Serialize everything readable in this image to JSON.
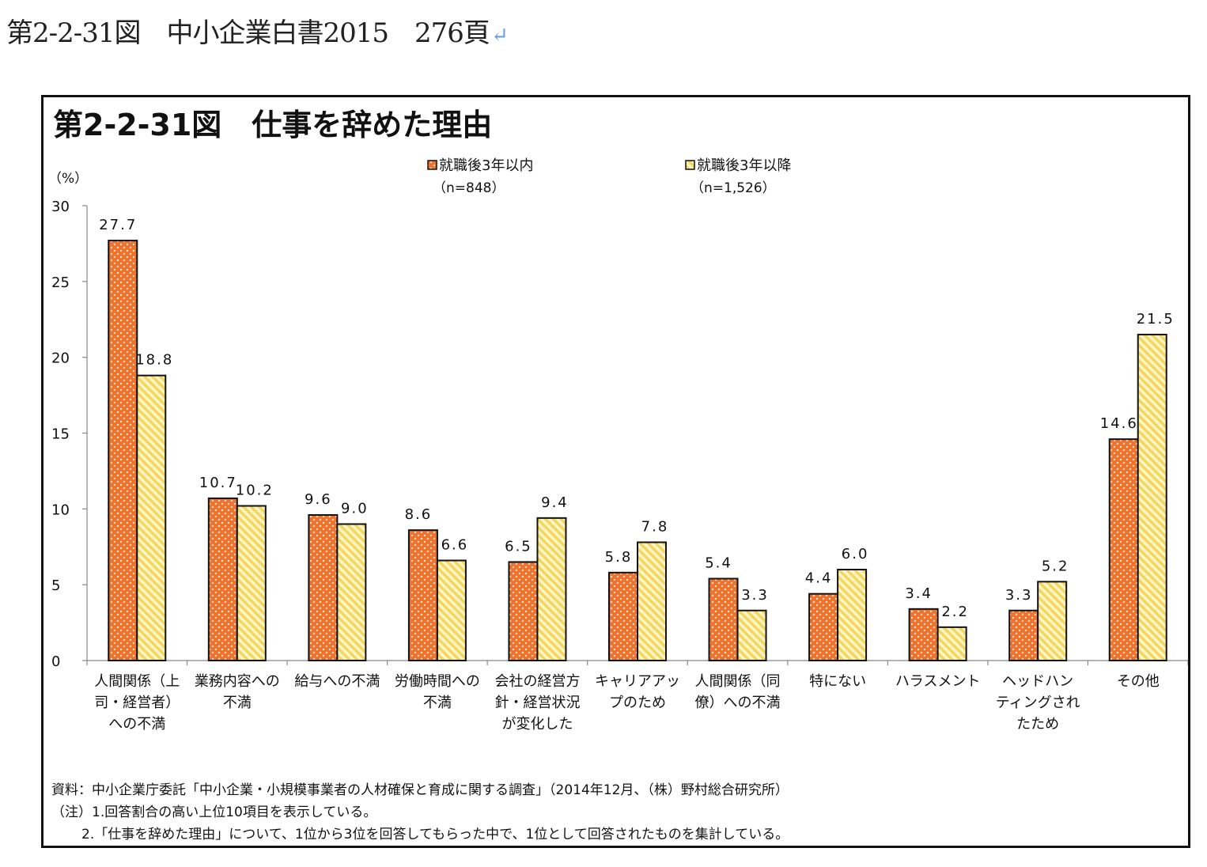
{
  "page": {
    "title": "第2-2-31図　中小企業白書2015　276頁",
    "return_mark": "↵"
  },
  "chart_data": {
    "type": "bar",
    "title": "第2-2-31図　仕事を辞めた理由",
    "ylabel": "（%）",
    "xlabel": "",
    "ylim": [
      0,
      30
    ],
    "yticks": [
      0,
      5,
      10,
      15,
      20,
      25,
      30
    ],
    "grid": false,
    "legend_position": "top-center",
    "categories": [
      [
        "人間関係（上",
        "司・経営者）",
        "への不満"
      ],
      [
        "業務内容への",
        "不満"
      ],
      [
        "給与への不満"
      ],
      [
        "労働時間への",
        "不満"
      ],
      [
        "会社の経営方",
        "針・経営状況",
        "が変化した"
      ],
      [
        "キャリアアッ",
        "プのため"
      ],
      [
        "人間関係（同",
        "僚）への不満"
      ],
      [
        "特にない"
      ],
      [
        "ハラスメント"
      ],
      [
        "ヘッドハン",
        "ティングされ",
        "たため"
      ],
      [
        "その他"
      ]
    ],
    "series": [
      {
        "name": "就職後3年以内",
        "n_label": "（n=848）",
        "color": "#ed7330",
        "pattern": "dots",
        "values": [
          27.7,
          10.7,
          9.6,
          8.6,
          6.5,
          5.8,
          5.4,
          4.4,
          3.4,
          3.3,
          14.6
        ],
        "labels": [
          "27.7",
          "10.7",
          "9.6",
          "8.6",
          "6.5",
          "5.8",
          "5.4",
          "4.4",
          "3.4",
          "3.3",
          "14.6"
        ]
      },
      {
        "name": "就職後3年以降",
        "n_label": "（n=1,526）",
        "color": "#f7e07a",
        "pattern": "diagonal-stripes",
        "values": [
          18.8,
          10.2,
          9.0,
          6.6,
          9.4,
          7.8,
          3.3,
          6.0,
          2.2,
          5.2,
          21.5
        ],
        "labels": [
          "18.8",
          "10.2",
          "9.0",
          "6.6",
          "9.4",
          "7.8",
          "3.3",
          "6.0",
          "2.2",
          "5.2",
          "21.5"
        ]
      }
    ]
  },
  "footnotes": {
    "source": "資料：中小企業庁委託「中小企業・小規模事業者の人材確保と育成に関する調査」（2014年12月、（株）野村総合研究所）",
    "note1": "（注）1.回答割合の高い上位10項目を表示している。",
    "note2": "2.「仕事を辞めた理由」について、1位から3位を回答してもらった中で、1位として回答されたものを集計している。"
  }
}
